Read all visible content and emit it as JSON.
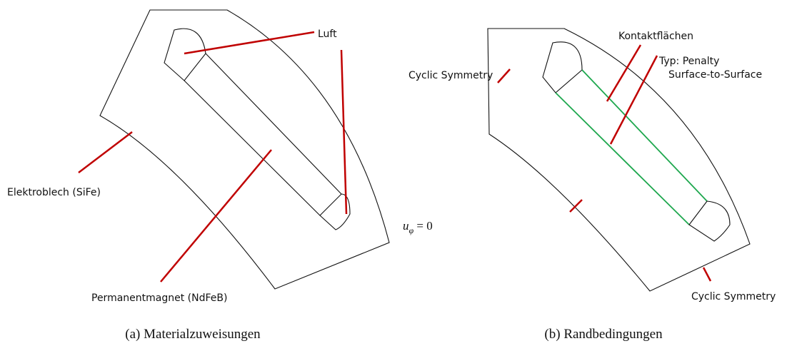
{
  "panels": [
    {
      "labels": [
        "Luft",
        "Elektroblech (SiFe)",
        "Permanentmagnet (NdFeB)"
      ],
      "caption": "(a) Materialzuweisungen"
    },
    {
      "labels": [
        "Cyclic Symmetry",
        "Kontaktflächen",
        "Typ: Penalty",
        "Surface-to-Surface",
        "Cyclic Symmetry"
      ],
      "math": {
        "base": "u",
        "subscript": "φ",
        "rest": " = 0"
      },
      "caption": "(b) Randbedingungen"
    }
  ]
}
